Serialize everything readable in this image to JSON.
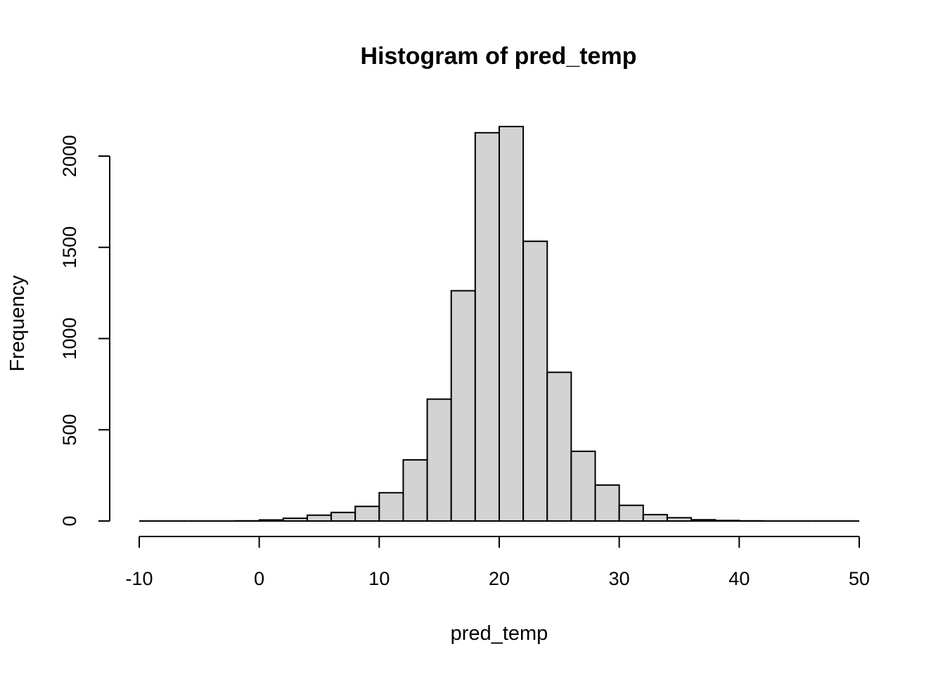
{
  "chart_data": {
    "type": "bar",
    "title": "Histogram of pred_temp",
    "xlabel": "pred_temp",
    "ylabel": "Frequency",
    "bar_color": "#d3d3d3",
    "xlim": [
      -10,
      50
    ],
    "ylim": [
      0,
      2200
    ],
    "x_ticks": [
      -10,
      0,
      10,
      20,
      30,
      40,
      50
    ],
    "y_ticks": [
      0,
      500,
      1000,
      1500,
      2000
    ],
    "bin_width": 2,
    "bins": [
      {
        "x0": -10,
        "x1": -8,
        "count": 0
      },
      {
        "x0": -8,
        "x1": -6,
        "count": 0
      },
      {
        "x0": -6,
        "x1": -4,
        "count": 0
      },
      {
        "x0": -4,
        "x1": -2,
        "count": 0
      },
      {
        "x0": -2,
        "x1": 0,
        "count": 1
      },
      {
        "x0": 0,
        "x1": 2,
        "count": 6
      },
      {
        "x0": 2,
        "x1": 4,
        "count": 15
      },
      {
        "x0": 4,
        "x1": 6,
        "count": 32
      },
      {
        "x0": 6,
        "x1": 8,
        "count": 47
      },
      {
        "x0": 8,
        "x1": 10,
        "count": 80
      },
      {
        "x0": 10,
        "x1": 12,
        "count": 155
      },
      {
        "x0": 12,
        "x1": 14,
        "count": 335
      },
      {
        "x0": 14,
        "x1": 16,
        "count": 668
      },
      {
        "x0": 16,
        "x1": 18,
        "count": 1262
      },
      {
        "x0": 18,
        "x1": 20,
        "count": 2128
      },
      {
        "x0": 20,
        "x1": 22,
        "count": 2162
      },
      {
        "x0": 22,
        "x1": 24,
        "count": 1533
      },
      {
        "x0": 24,
        "x1": 26,
        "count": 815
      },
      {
        "x0": 26,
        "x1": 28,
        "count": 382
      },
      {
        "x0": 28,
        "x1": 30,
        "count": 197
      },
      {
        "x0": 30,
        "x1": 32,
        "count": 86
      },
      {
        "x0": 32,
        "x1": 34,
        "count": 35
      },
      {
        "x0": 34,
        "x1": 36,
        "count": 18
      },
      {
        "x0": 36,
        "x1": 38,
        "count": 7
      },
      {
        "x0": 38,
        "x1": 40,
        "count": 3
      },
      {
        "x0": 40,
        "x1": 42,
        "count": 1
      },
      {
        "x0": 42,
        "x1": 44,
        "count": 0
      },
      {
        "x0": 44,
        "x1": 46,
        "count": 0
      },
      {
        "x0": 46,
        "x1": 48,
        "count": 0
      },
      {
        "x0": 48,
        "x1": 50,
        "count": 0
      }
    ]
  }
}
